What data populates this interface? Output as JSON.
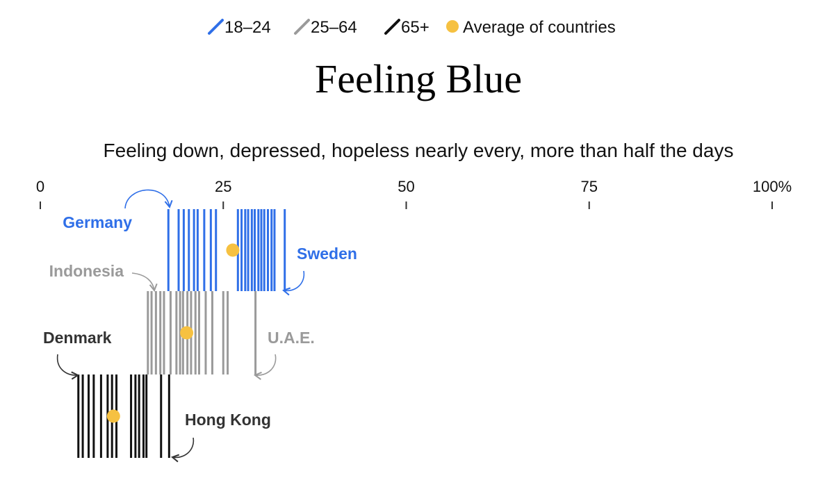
{
  "colors": {
    "age_18_24": "#2f6fe8",
    "age_25_64": "#9a9a9a",
    "age_65_plus": "#111111",
    "average": "#f6c141",
    "label_blue": "#2f6fe8",
    "label_gray": "#9a9a9a",
    "label_dark": "#333333"
  },
  "legend": {
    "items": [
      {
        "label": "18–24",
        "icon": "slash-icon",
        "color": "#2f6fe8"
      },
      {
        "label": "25–64",
        "icon": "slash-icon",
        "color": "#9a9a9a"
      },
      {
        "label": "65+",
        "icon": "slash-icon",
        "color": "#111111"
      },
      {
        "label": "Average of countries",
        "icon": "dot-icon",
        "color": "#f6c141"
      }
    ]
  },
  "chart_data": {
    "type": "scatter",
    "title": "Feeling Blue",
    "subtitle": "Feeling down, depressed, hopeless nearly every, more than half the days",
    "xlim": [
      0,
      100
    ],
    "xticks": [
      0,
      25,
      50,
      75,
      100
    ],
    "xtick_labels": [
      "0",
      "25",
      "50",
      "75",
      "100%"
    ],
    "grid": false,
    "legend_position": "top-center",
    "series": [
      {
        "name": "18–24",
        "color": "#2f6fe8",
        "values": [
          17.5,
          18.9,
          19.6,
          20.3,
          21.0,
          21.5,
          22.4,
          23.3,
          24.0,
          27.0,
          27.5,
          28.0,
          28.4,
          28.9,
          29.3,
          29.8,
          30.2,
          30.6,
          31.1,
          31.6,
          32.0,
          33.4
        ],
        "average": 26.3
      },
      {
        "name": "25–64",
        "color": "#9a9a9a",
        "values": [
          14.7,
          15.2,
          15.8,
          16.4,
          16.9,
          17.8,
          18.6,
          19.1,
          19.5,
          20.1,
          20.6,
          21.2,
          21.7,
          22.6,
          23.5,
          25.0,
          25.6,
          29.4
        ],
        "average": 20.0
      },
      {
        "name": "65+",
        "color": "#111111",
        "values": [
          5.2,
          5.8,
          6.6,
          7.3,
          8.3,
          9.2,
          9.8,
          10.4,
          12.4,
          13.0,
          13.5,
          14.1,
          14.5,
          16.5,
          17.6
        ],
        "average": 10.0
      }
    ],
    "annotations": [
      {
        "label": "Germany",
        "value": 17.5,
        "series": "18–24"
      },
      {
        "label": "Sweden",
        "value": 33.4,
        "series": "18–24"
      },
      {
        "label": "Indonesia",
        "value": 14.7,
        "series": "25–64"
      },
      {
        "label": "U.A.E.",
        "value": 29.4,
        "series": "25–64"
      },
      {
        "label": "Denmark",
        "value": 5.2,
        "series": "65+"
      },
      {
        "label": "Hong Kong",
        "value": 17.6,
        "series": "65+"
      }
    ]
  }
}
